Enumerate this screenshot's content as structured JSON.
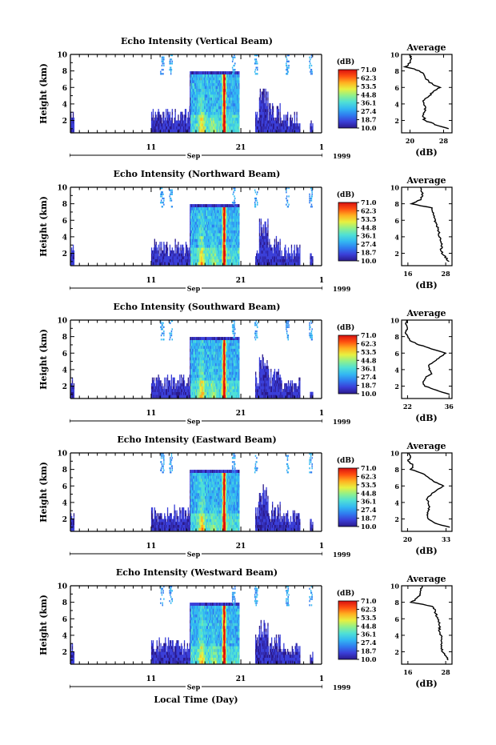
{
  "chart_data": [
    {
      "type": "heatmap",
      "title": "Echo Intensity (Vertical Beam)",
      "ylabel": "Height (km)",
      "ylim": [
        0.5,
        10
      ],
      "y_ticks": [
        "2",
        "4",
        "6",
        "8",
        "10"
      ],
      "x_ticks": [
        "11",
        "21"
      ],
      "x_ticks_right": "1",
      "month_label": "Sep",
      "year_label": "1999",
      "colorbar_unit": "(dB)",
      "colorbar_ticks": [
        "71.0",
        "62.3",
        "53.5",
        "44.8",
        "36.1",
        "27.4",
        "18.7",
        "10.0"
      ],
      "colorbar_range": [
        10.0,
        71.0
      ],
      "average_profile": {
        "title": "Average",
        "xlabel": "(dB)",
        "x_ticks": [
          "20",
          "28"
        ],
        "xlim": [
          18,
          30
        ],
        "heights": [
          1,
          1.5,
          2,
          2.5,
          3,
          3.5,
          4,
          4.5,
          5,
          5.5,
          6,
          6.5,
          7,
          7.5,
          8,
          8.5,
          9,
          9.5,
          10
        ],
        "values": [
          29,
          26,
          23.5,
          23.2,
          23.5,
          23.8,
          23.5,
          23.2,
          24.5,
          25.5,
          27,
          25,
          24,
          23.5,
          22.5,
          19,
          20,
          20.5,
          20
        ]
      }
    },
    {
      "type": "heatmap",
      "title": "Echo Intensity (Northward Beam)",
      "ylabel": "Height (km)",
      "ylim": [
        0.5,
        10
      ],
      "y_ticks": [
        "2",
        "4",
        "6",
        "8",
        "10"
      ],
      "x_ticks": [
        "11",
        "21"
      ],
      "x_ticks_right": "1",
      "month_label": "Sep",
      "year_label": "1999",
      "colorbar_unit": "(dB)",
      "colorbar_ticks": [
        "71.0",
        "62.3",
        "53.5",
        "44.8",
        "36.1",
        "27.4",
        "18.7",
        "10.0"
      ],
      "colorbar_range": [
        10.0,
        71.0
      ],
      "average_profile": {
        "title": "Average",
        "xlabel": "(dB)",
        "x_ticks": [
          "16",
          "28"
        ],
        "xlim": [
          14,
          30
        ],
        "heights": [
          1,
          1.5,
          2,
          2.5,
          3,
          3.5,
          4,
          4.5,
          5,
          5.5,
          6,
          6.5,
          7,
          7.5,
          8,
          8.5,
          9,
          9.5,
          10
        ],
        "values": [
          29,
          28,
          27,
          26.5,
          26.8,
          26.5,
          26,
          25.8,
          25.5,
          25,
          24.5,
          24.5,
          24,
          23.5,
          17,
          20,
          20.5,
          20.5,
          20
        ]
      }
    },
    {
      "type": "heatmap",
      "title": "Echo Intensity (Southward Beam)",
      "ylabel": "Height (km)",
      "ylim": [
        0.5,
        10
      ],
      "y_ticks": [
        "2",
        "4",
        "6",
        "8",
        "10"
      ],
      "x_ticks": [
        "11",
        "21"
      ],
      "x_ticks_right": "1",
      "month_label": "Sep",
      "year_label": "1999",
      "colorbar_unit": "(dB)",
      "colorbar_ticks": [
        "71.0",
        "62.3",
        "53.5",
        "44.8",
        "36.1",
        "27.4",
        "18.7",
        "10.0"
      ],
      "colorbar_range": [
        10.0,
        71.0
      ],
      "average_profile": {
        "title": "Average",
        "xlabel": "(dB)",
        "x_ticks": [
          "22",
          "36"
        ],
        "xlim": [
          20,
          37
        ],
        "heights": [
          1,
          1.5,
          2,
          2.5,
          3,
          3.5,
          4,
          4.5,
          5,
          5.5,
          6,
          6.5,
          7,
          7.5,
          8,
          8.5,
          9,
          9.5,
          10
        ],
        "values": [
          36,
          32,
          28,
          27,
          28,
          30,
          29.5,
          29,
          31,
          33,
          35,
          30,
          26,
          23,
          22,
          21,
          22,
          21.5,
          22
        ]
      }
    },
    {
      "type": "heatmap",
      "title": "Echo Intensity (Eastward Beam)",
      "ylabel": "Height (km)",
      "ylim": [
        0.5,
        10
      ],
      "y_ticks": [
        "2",
        "4",
        "6",
        "8",
        "10"
      ],
      "x_ticks": [
        "11",
        "21"
      ],
      "x_ticks_right": "1",
      "month_label": "Sep",
      "year_label": "1999",
      "colorbar_unit": "(dB)",
      "colorbar_ticks": [
        "71.0",
        "62.3",
        "53.5",
        "44.8",
        "36.1",
        "27.4",
        "18.7",
        "10.0"
      ],
      "colorbar_range": [
        10.0,
        71.0
      ],
      "average_profile": {
        "title": "Average",
        "xlabel": "(dB)",
        "x_ticks": [
          "20",
          "33"
        ],
        "xlim": [
          18,
          35
        ],
        "heights": [
          1,
          1.5,
          2,
          2.5,
          3,
          3.5,
          4,
          4.5,
          5,
          5.5,
          6,
          6.5,
          7,
          7.5,
          8,
          8.5,
          9,
          9.5,
          10
        ],
        "values": [
          34,
          29,
          27,
          26.5,
          27,
          27.5,
          27,
          26.5,
          28,
          30,
          32,
          29,
          27,
          25,
          21,
          22,
          20,
          21,
          20.5
        ]
      }
    },
    {
      "type": "heatmap",
      "title": "Echo Intensity (Westward Beam)",
      "ylabel": "Height (km)",
      "ylim": [
        0.5,
        10
      ],
      "y_ticks": [
        "2",
        "4",
        "6",
        "8",
        "10"
      ],
      "x_ticks": [
        "11",
        "21"
      ],
      "x_ticks_right": "1",
      "month_label": "Sep",
      "year_label": "1999",
      "colorbar_unit": "(dB)",
      "colorbar_ticks": [
        "71.0",
        "62.3",
        "53.5",
        "44.8",
        "36.1",
        "27.4",
        "18.7",
        "10.0"
      ],
      "colorbar_range": [
        10.0,
        71.0
      ],
      "average_profile": {
        "title": "Average",
        "xlabel": "(dB)",
        "x_ticks": [
          "16",
          "28"
        ],
        "xlim": [
          14,
          30
        ],
        "heights": [
          1,
          1.5,
          2,
          2.5,
          3,
          3.5,
          4,
          4.5,
          5,
          5.5,
          6,
          6.5,
          7,
          7.5,
          8,
          8.5,
          9,
          9.5,
          10
        ],
        "values": [
          29,
          28,
          27,
          26.5,
          26.5,
          26.8,
          26.5,
          26,
          26,
          26,
          25.5,
          25,
          24.5,
          24,
          17,
          19,
          20,
          20,
          20.5
        ]
      }
    }
  ],
  "xlabel": "Local Time (Day)",
  "colormap": [
    "#2b1a8c",
    "#3a3fd8",
    "#2f7df0",
    "#33b8f2",
    "#4fe0d6",
    "#8ff08c",
    "#e8f040",
    "#ffb020",
    "#ff5010",
    "#d81010"
  ]
}
